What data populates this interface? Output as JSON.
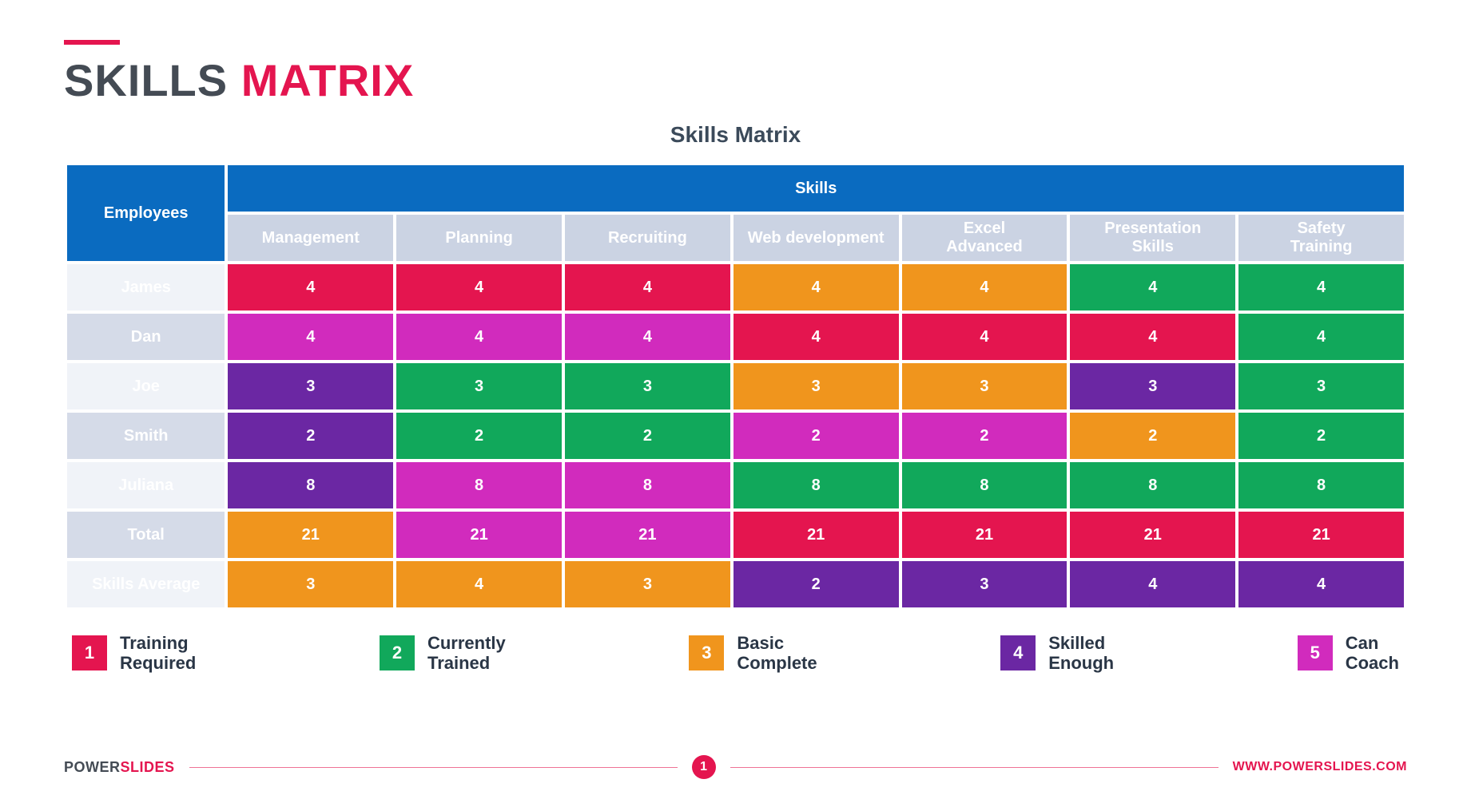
{
  "colors": {
    "red": "#e4154f",
    "green": "#11a85b",
    "orange": "#f0951d",
    "purple": "#6b27a3",
    "magenta": "#d12bbd",
    "blue_header": "#0a6bc0",
    "col_head_bg": "#cbd3e3",
    "row_label_alt0": "#f0f3f8",
    "row_label_alt1": "#d5dbe8",
    "title_dark": "#444b54",
    "title_accent": "#e4154f",
    "text_dark": "#3b4a5a"
  },
  "title": {
    "part1": "SKILLS ",
    "part2": "MATRIX",
    "underline_color": "#e4154f"
  },
  "subtitle": "Skills Matrix",
  "table": {
    "employees_header": "Employees",
    "skills_header": "Skills",
    "skill_columns": [
      "Management",
      "Planning",
      "Recruiting",
      "Web development",
      "Excel\nAdvanced",
      "Presentation\nSkills",
      "Safety\nTraining"
    ],
    "rows": [
      {
        "label": "James",
        "cells": [
          {
            "value": "4",
            "color": "red"
          },
          {
            "value": "4",
            "color": "red"
          },
          {
            "value": "4",
            "color": "red"
          },
          {
            "value": "4",
            "color": "orange"
          },
          {
            "value": "4",
            "color": "orange"
          },
          {
            "value": "4",
            "color": "green"
          },
          {
            "value": "4",
            "color": "green"
          }
        ]
      },
      {
        "label": "Dan",
        "cells": [
          {
            "value": "4",
            "color": "magenta"
          },
          {
            "value": "4",
            "color": "magenta"
          },
          {
            "value": "4",
            "color": "magenta"
          },
          {
            "value": "4",
            "color": "red"
          },
          {
            "value": "4",
            "color": "red"
          },
          {
            "value": "4",
            "color": "red"
          },
          {
            "value": "4",
            "color": "green"
          }
        ]
      },
      {
        "label": "Joe",
        "cells": [
          {
            "value": "3",
            "color": "purple"
          },
          {
            "value": "3",
            "color": "green"
          },
          {
            "value": "3",
            "color": "green"
          },
          {
            "value": "3",
            "color": "orange"
          },
          {
            "value": "3",
            "color": "orange"
          },
          {
            "value": "3",
            "color": "purple"
          },
          {
            "value": "3",
            "color": "green"
          }
        ]
      },
      {
        "label": "Smith",
        "cells": [
          {
            "value": "2",
            "color": "purple"
          },
          {
            "value": "2",
            "color": "green"
          },
          {
            "value": "2",
            "color": "green"
          },
          {
            "value": "2",
            "color": "magenta"
          },
          {
            "value": "2",
            "color": "magenta"
          },
          {
            "value": "2",
            "color": "orange"
          },
          {
            "value": "2",
            "color": "green"
          }
        ]
      },
      {
        "label": "Juliana",
        "cells": [
          {
            "value": "8",
            "color": "purple"
          },
          {
            "value": "8",
            "color": "magenta"
          },
          {
            "value": "8",
            "color": "magenta"
          },
          {
            "value": "8",
            "color": "green"
          },
          {
            "value": "8",
            "color": "green"
          },
          {
            "value": "8",
            "color": "green"
          },
          {
            "value": "8",
            "color": "green"
          }
        ]
      },
      {
        "label": "Total",
        "cells": [
          {
            "value": "21",
            "color": "orange"
          },
          {
            "value": "21",
            "color": "magenta"
          },
          {
            "value": "21",
            "color": "magenta"
          },
          {
            "value": "21",
            "color": "red"
          },
          {
            "value": "21",
            "color": "red"
          },
          {
            "value": "21",
            "color": "red"
          },
          {
            "value": "21",
            "color": "red"
          }
        ]
      },
      {
        "label": "Skills Average",
        "cells": [
          {
            "value": "3",
            "color": "orange"
          },
          {
            "value": "4",
            "color": "orange"
          },
          {
            "value": "3",
            "color": "orange"
          },
          {
            "value": "2",
            "color": "purple"
          },
          {
            "value": "3",
            "color": "purple"
          },
          {
            "value": "4",
            "color": "purple"
          },
          {
            "value": "4",
            "color": "purple"
          }
        ]
      }
    ]
  },
  "legend": [
    {
      "num": "1",
      "color": "red",
      "label": "Training\nRequired"
    },
    {
      "num": "2",
      "color": "green",
      "label": "Currently\nTrained"
    },
    {
      "num": "3",
      "color": "orange",
      "label": "Basic\nComplete"
    },
    {
      "num": "4",
      "color": "purple",
      "label": "Skilled\nEnough"
    },
    {
      "num": "5",
      "color": "magenta",
      "label": "Can\nCoach"
    }
  ],
  "footer": {
    "brand1": "POWER",
    "brand2": "SLIDES",
    "page": "1",
    "url": "WWW.POWERSLIDES.COM"
  }
}
